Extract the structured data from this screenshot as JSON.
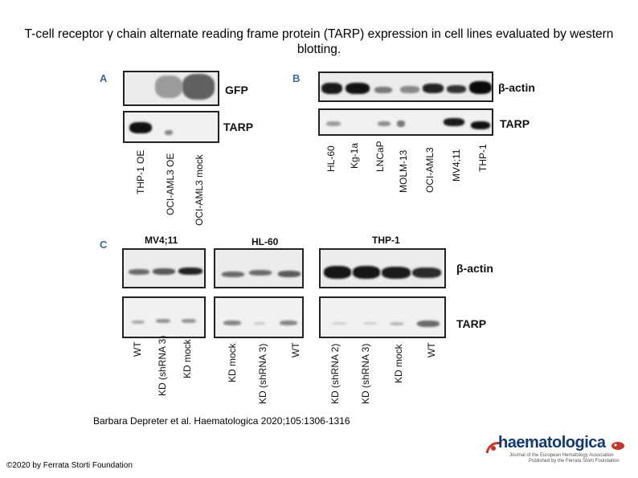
{
  "slide": {
    "title": "T-cell receptor γ chain alternate reading frame protein (TARP) expression in cell lines evaluated by western blotting.",
    "citation": "Barbara Depreter et al. Haematologica 2020;105:1306-1316",
    "copyright": "©2020 by Ferrata Storti Foundation"
  },
  "figure": {
    "panel_a": {
      "letter": "A",
      "rows": [
        "GFP",
        "TARP"
      ],
      "lanes": [
        "THP-1 OE",
        "OCI-AML3 OE",
        "OCI-AML3 mock"
      ]
    },
    "panel_b": {
      "letter": "B",
      "rows": [
        "β-actin",
        "TARP"
      ],
      "lanes": [
        "HL-60",
        "Kg-1a",
        "LNCaP",
        "MOLM-13",
        "OCI-AML3",
        "MV4;11",
        "THP-1"
      ]
    },
    "panel_c": {
      "letter": "C",
      "rows": [
        "β-actin",
        "TARP"
      ],
      "groups": [
        {
          "name": "MV4;11",
          "lanes": [
            "WT",
            "KD (shRNA 3)",
            "KD mock"
          ]
        },
        {
          "name": "HL-60",
          "lanes": [
            "KD mock",
            "KD (shRNA 3)",
            "WT"
          ]
        },
        {
          "name": "THP-1",
          "lanes": [
            "KD (shRNA 2)",
            "KD (shRNA 3)",
            "KD mock",
            "WT"
          ]
        }
      ]
    }
  },
  "logo": {
    "name": "haematologica",
    "line1": "Journal of the European Hematology Association",
    "line2": "Published by the Ferrata Storti Foundation",
    "brand_color": "#123a6e",
    "accent_color": "#c0392b"
  }
}
